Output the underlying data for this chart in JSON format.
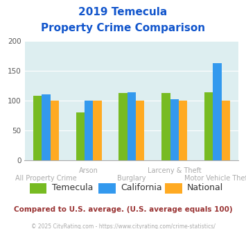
{
  "title_line1": "2019 Temecula",
  "title_line2": "Property Crime Comparison",
  "categories": [
    "All Property Crime",
    "Arson",
    "Burglary",
    "Larceny & Theft",
    "Motor Vehicle Theft"
  ],
  "cat_row1": [
    "",
    "Arson",
    "",
    "Larceny & Theft",
    ""
  ],
  "cat_row2": [
    "All Property Crime",
    "",
    "Burglary",
    "",
    "Motor Vehicle Theft"
  ],
  "series": {
    "Temecula": [
      108,
      80,
      113,
      113,
      114
    ],
    "California": [
      111,
      100,
      114,
      103,
      163
    ],
    "National": [
      100,
      100,
      100,
      100,
      100
    ]
  },
  "colors": {
    "Temecula": "#77bb22",
    "California": "#3399ee",
    "National": "#ffaa22"
  },
  "ylim": [
    0,
    200
  ],
  "yticks": [
    0,
    50,
    100,
    150,
    200
  ],
  "plot_bg": "#ddeef0",
  "title_color": "#1155cc",
  "xlabel_color_row1": "#aaaaaa",
  "xlabel_color_row2": "#aaaaaa",
  "xlabel_fontsize": 7.0,
  "legend_fontsize": 9,
  "legend_text_color": "#333333",
  "footnote": "Compared to U.S. average. (U.S. average equals 100)",
  "footnote_color": "#993333",
  "copyright": "© 2025 CityRating.com - https://www.cityrating.com/crime-statistics/",
  "copyright_color": "#aaaaaa",
  "bar_width": 0.2
}
